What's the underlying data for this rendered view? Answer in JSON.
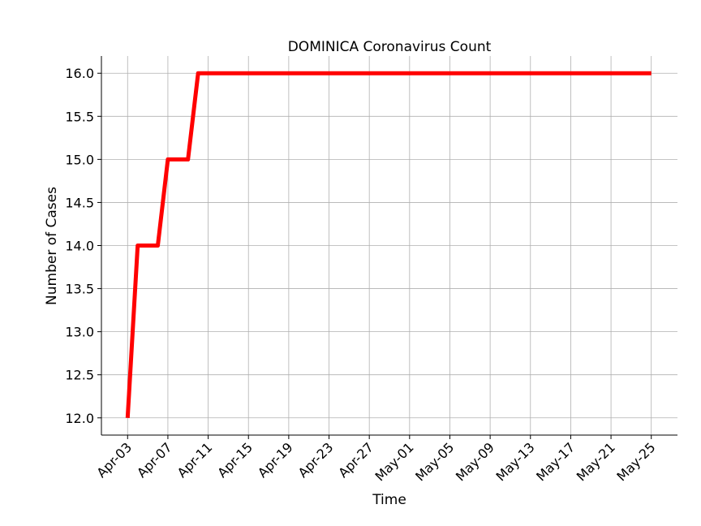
{
  "chart_data": {
    "type": "line",
    "title": "DOMINICA Coronavirus Count",
    "xlabel": "Time",
    "ylabel": "Number of Cases",
    "x": [
      "2020-04-03",
      "2020-04-04",
      "2020-04-05",
      "2020-04-06",
      "2020-04-07",
      "2020-04-08",
      "2020-04-09",
      "2020-04-10",
      "2020-04-11",
      "2020-04-12",
      "2020-04-13",
      "2020-04-14",
      "2020-04-15",
      "2020-04-16",
      "2020-04-17",
      "2020-04-18",
      "2020-04-19",
      "2020-04-20",
      "2020-04-21",
      "2020-04-22",
      "2020-04-23",
      "2020-04-24",
      "2020-04-25",
      "2020-04-26",
      "2020-04-27",
      "2020-04-28",
      "2020-04-29",
      "2020-04-30",
      "2020-05-01",
      "2020-05-02",
      "2020-05-03",
      "2020-05-04",
      "2020-05-05",
      "2020-05-06",
      "2020-05-07",
      "2020-05-08",
      "2020-05-09",
      "2020-05-10",
      "2020-05-11",
      "2020-05-12",
      "2020-05-13",
      "2020-05-14",
      "2020-05-15",
      "2020-05-16",
      "2020-05-17",
      "2020-05-18",
      "2020-05-19",
      "2020-05-20",
      "2020-05-21",
      "2020-05-22",
      "2020-05-23",
      "2020-05-24",
      "2020-05-25"
    ],
    "series": [
      {
        "name": "DOMINICA",
        "color": "#ff0000",
        "values": [
          12,
          14,
          14,
          14,
          15,
          15,
          15,
          16,
          16,
          16,
          16,
          16,
          16,
          16,
          16,
          16,
          16,
          16,
          16,
          16,
          16,
          16,
          16,
          16,
          16,
          16,
          16,
          16,
          16,
          16,
          16,
          16,
          16,
          16,
          16,
          16,
          16,
          16,
          16,
          16,
          16,
          16,
          16,
          16,
          16,
          16,
          16,
          16,
          16,
          16,
          16,
          16,
          16
        ]
      }
    ],
    "xticks": [
      "Apr-03",
      "Apr-07",
      "Apr-11",
      "Apr-15",
      "Apr-19",
      "Apr-23",
      "Apr-27",
      "May-01",
      "May-05",
      "May-09",
      "May-13",
      "May-17",
      "May-21",
      "May-25"
    ],
    "yticks": [
      12.0,
      12.5,
      13.0,
      13.5,
      14.0,
      14.5,
      15.0,
      15.5,
      16.0
    ],
    "ytick_labels": [
      "12.0",
      "12.5",
      "13.0",
      "13.5",
      "14.0",
      "14.5",
      "15.0",
      "15.5",
      "16.0"
    ],
    "ylim": [
      11.8,
      16.2
    ],
    "xlim_days": [
      -2.6,
      54.6
    ],
    "grid": true
  }
}
